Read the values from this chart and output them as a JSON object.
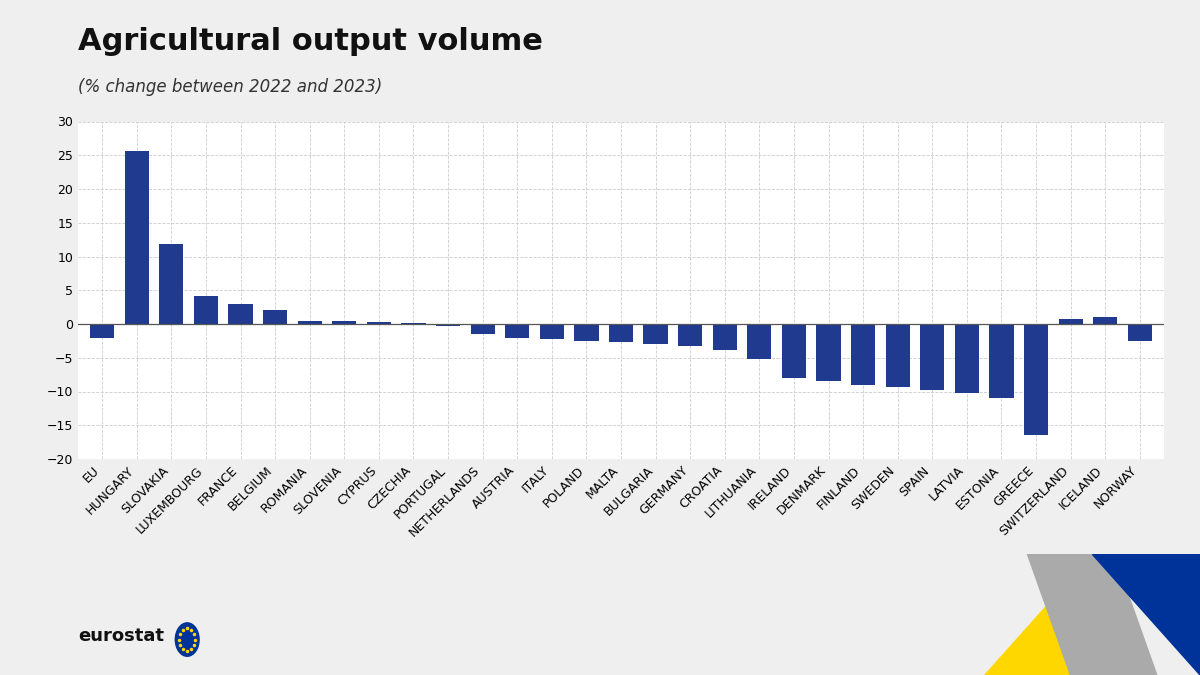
{
  "title": "Agricultural output volume",
  "subtitle": "(% change between 2022 and 2023)",
  "categories": [
    "EU",
    "HUNGARY",
    "SLOVAKIA",
    "LUXEMBOURG",
    "FRANCE",
    "BELGIUM",
    "ROMANIA",
    "SLOVENIA",
    "CYPRUS",
    "CZECHIA",
    "PORTUGAL",
    "NETHERLANDS",
    "AUSTRIA",
    "ITALY",
    "POLAND",
    "MALTA",
    "BULGARIA",
    "GERMANY",
    "CROATIA",
    "LITHUANIA",
    "IRELAND",
    "DENMARK",
    "FINLAND",
    "SWEDEN",
    "SPAIN",
    "LATVIA",
    "ESTONIA",
    "GREECE",
    "SWITZERLAND",
    "ICELAND",
    "NORWAY"
  ],
  "values": [
    -2.0,
    25.7,
    11.8,
    4.2,
    3.0,
    2.1,
    0.5,
    0.4,
    0.3,
    0.2,
    -0.3,
    -1.5,
    -2.0,
    -2.2,
    -2.5,
    -2.7,
    -3.0,
    -3.3,
    -3.8,
    -5.2,
    -8.0,
    -8.5,
    -9.0,
    -9.3,
    -9.8,
    -10.2,
    -11.0,
    -16.5,
    0.8,
    1.0,
    -2.5
  ],
  "bar_color": "#1f3a8f",
  "background_color": "#efefef",
  "plot_bg_color": "#ffffff",
  "ylim": [
    -20,
    30
  ],
  "yticks": [
    -20,
    -15,
    -10,
    -5,
    0,
    5,
    10,
    15,
    20,
    25,
    30
  ],
  "grid_color": "#cccccc",
  "title_fontsize": 22,
  "subtitle_fontsize": 12,
  "tick_fontsize": 9,
  "bar_width": 0.7
}
